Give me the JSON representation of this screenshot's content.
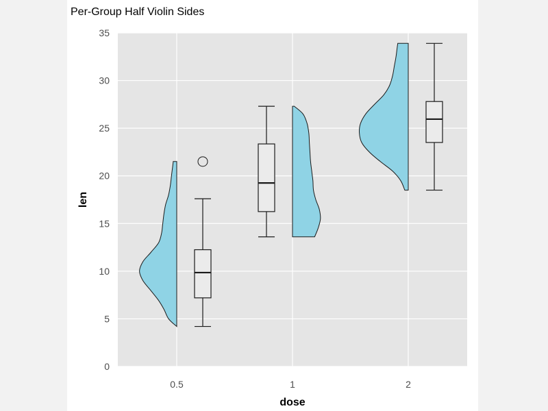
{
  "chart_data": {
    "type": "violin",
    "title": "Per-Group Half Violin Sides",
    "xlabel": "dose",
    "ylabel": "len",
    "ylim": [
      0,
      35
    ],
    "yticks": [
      "0",
      "5",
      "10",
      "15",
      "20",
      "25",
      "30",
      "35"
    ],
    "categories": [
      "0.5",
      "1",
      "2"
    ],
    "grid": true,
    "colors": {
      "panel": "#e5e5e5",
      "grid": "#ffffff",
      "violin_fill": "#8fd3e5",
      "outline": "#1a1a1a",
      "box_fill": "#ebebeb"
    },
    "groups": [
      {
        "category": "0.5",
        "violin_side": "left",
        "box_side": "right",
        "box": {
          "min": 4.2,
          "q1": 7.2,
          "median": 9.85,
          "q3": 12.25,
          "max": 17.6
        },
        "outliers": [
          21.5
        ],
        "density": [
          [
            4.2,
            0.0
          ],
          [
            5.0,
            0.14
          ],
          [
            6.0,
            0.22
          ],
          [
            7.0,
            0.32
          ],
          [
            8.0,
            0.45
          ],
          [
            9.0,
            0.58
          ],
          [
            10.0,
            0.64
          ],
          [
            11.0,
            0.58
          ],
          [
            12.0,
            0.44
          ],
          [
            13.0,
            0.31
          ],
          [
            14.0,
            0.26
          ],
          [
            15.0,
            0.24
          ],
          [
            16.0,
            0.22
          ],
          [
            17.0,
            0.19
          ],
          [
            18.0,
            0.14
          ],
          [
            19.0,
            0.11
          ],
          [
            20.0,
            0.09
          ],
          [
            21.0,
            0.07
          ],
          [
            21.5,
            0.06
          ]
        ]
      },
      {
        "category": "1",
        "violin_side": "right",
        "box_side": "left",
        "box": {
          "min": 13.6,
          "q1": 16.25,
          "median": 19.25,
          "q3": 23.35,
          "max": 27.3
        },
        "outliers": [],
        "density": [
          [
            13.6,
            0.38
          ],
          [
            14.5,
            0.44
          ],
          [
            15.5,
            0.48
          ],
          [
            16.5,
            0.46
          ],
          [
            17.5,
            0.4
          ],
          [
            18.5,
            0.36
          ],
          [
            19.5,
            0.35
          ],
          [
            20.5,
            0.33
          ],
          [
            21.5,
            0.31
          ],
          [
            22.5,
            0.3
          ],
          [
            23.5,
            0.29
          ],
          [
            24.5,
            0.28
          ],
          [
            25.5,
            0.25
          ],
          [
            26.5,
            0.18
          ],
          [
            27.3,
            0.03
          ]
        ]
      },
      {
        "category": "2",
        "violin_side": "left",
        "box_side": "right",
        "box": {
          "min": 18.5,
          "q1": 23.5,
          "median": 25.95,
          "q3": 27.8,
          "max": 33.9
        },
        "outliers": [],
        "density": [
          [
            18.5,
            0.06
          ],
          [
            19.5,
            0.13
          ],
          [
            20.5,
            0.27
          ],
          [
            21.5,
            0.48
          ],
          [
            22.5,
            0.67
          ],
          [
            23.5,
            0.8
          ],
          [
            24.5,
            0.84
          ],
          [
            25.5,
            0.82
          ],
          [
            26.5,
            0.73
          ],
          [
            27.5,
            0.58
          ],
          [
            28.5,
            0.42
          ],
          [
            29.5,
            0.32
          ],
          [
            30.5,
            0.27
          ],
          [
            31.5,
            0.24
          ],
          [
            32.5,
            0.21
          ],
          [
            33.5,
            0.19
          ],
          [
            33.9,
            0.18
          ]
        ]
      }
    ]
  }
}
